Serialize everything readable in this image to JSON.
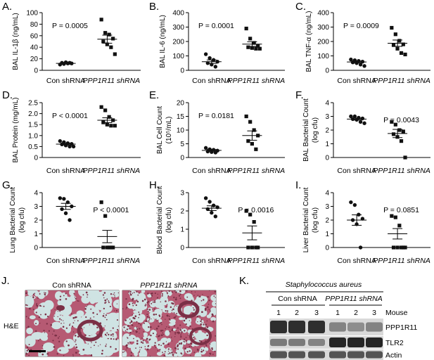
{
  "chart_data": [
    {
      "type": "scatter",
      "panel_label": "A.",
      "ylabel": "BAL IL-1β (ng/mL)",
      "ylim": [
        0,
        100
      ],
      "yticks": [
        "0",
        "20",
        "40",
        "60",
        "80",
        "100"
      ],
      "categories": [
        "Con shRNA",
        "PPP1R11 shRNA"
      ],
      "pvalue": "P = 0.0005",
      "groups": [
        {
          "points": [
            10,
            11,
            12,
            12,
            13,
            14,
            13
          ],
          "mean": 12.0,
          "sem": 1.0
        },
        {
          "points": [
            88,
            65,
            62,
            55,
            50,
            45,
            40,
            28
          ],
          "mean": 54.0,
          "sem": 7.0
        }
      ]
    },
    {
      "type": "scatter",
      "panel_label": "B.",
      "ylabel": "BAL IL-6 (ng/mL)",
      "ylim": [
        0,
        400
      ],
      "yticks": [
        "0",
        "100",
        "200",
        "300",
        "400"
      ],
      "categories": [
        "Con shRNA",
        "PPP1R11 shRNA"
      ],
      "pvalue": "P = 0.0001",
      "groups": [
        {
          "points": [
            112,
            85,
            72,
            60,
            50,
            40,
            25
          ],
          "mean": 60,
          "sem": 12
        },
        {
          "points": [
            290,
            220,
            190,
            170,
            160,
            155,
            150,
            150
          ],
          "mean": 182,
          "sem": 16
        }
      ]
    },
    {
      "type": "scatter",
      "panel_label": "C.",
      "ylabel": "BAL TNF-α (ng/mL)",
      "ylim": [
        0,
        400
      ],
      "yticks": [
        "0",
        "100",
        "200",
        "300",
        "400"
      ],
      "categories": [
        "Con shRNA",
        "PPP1R11 shRNA"
      ],
      "pvalue": "P = 0.0009",
      "groups": [
        {
          "points": [
            75,
            70,
            65,
            60,
            55,
            50,
            40,
            30
          ],
          "mean": 58,
          "sem": 6
        },
        {
          "points": [
            295,
            250,
            205,
            180,
            175,
            150,
            120,
            110
          ],
          "mean": 188,
          "sem": 22
        }
      ]
    },
    {
      "type": "scatter",
      "panel_label": "D.",
      "ylabel": "BAL Protein (mg/mL)",
      "ylim": [
        0,
        2.5
      ],
      "yticks": [
        "0",
        "0.5",
        "1.0",
        "1.5",
        "2.0",
        "2.5"
      ],
      "categories": [
        "Con shRNA",
        "PPP1R11 shRNA"
      ],
      "pvalue": "P < 0.0001",
      "groups": [
        {
          "points": [
            0.75,
            0.7,
            0.65,
            0.62,
            0.6,
            0.55,
            0.5,
            0.5
          ],
          "mean": 0.61,
          "sem": 0.04
        },
        {
          "points": [
            2.3,
            2.15,
            1.85,
            1.7,
            1.6,
            1.5,
            1.45,
            1.45
          ],
          "mean": 1.7,
          "sem": 0.11
        }
      ]
    },
    {
      "type": "scatter",
      "panel_label": "E.",
      "ylabel": "BAL Cell Count",
      "ylabel2": "(10⁵/mL)",
      "ylim": [
        0,
        20
      ],
      "yticks": [
        "0",
        "5",
        "10",
        "15",
        "20"
      ],
      "categories": [
        "Con shRNA",
        "PPP1R11 shRNA"
      ],
      "pvalue": "P = 0.0181",
      "groups": [
        {
          "points": [
            3.5,
            3.0,
            2.8,
            2.5,
            2.2,
            2.0,
            1.8
          ],
          "mean": 2.6,
          "sem": 0.3
        },
        {
          "points": [
            15,
            13,
            10,
            8,
            6,
            5,
            3
          ],
          "mean": 8.0,
          "sem": 1.7
        }
      ]
    },
    {
      "type": "scatter",
      "panel_label": "F.",
      "ylabel": "BAL Bacterial Count",
      "ylabel2": "(log cfu)",
      "ylim": [
        0,
        4
      ],
      "yticks": [
        "0",
        "1",
        "2",
        "3",
        "4"
      ],
      "categories": [
        "Con shRNA",
        "PPP1R11 shRNA"
      ],
      "pvalue": "P = 0.0043",
      "groups": [
        {
          "points": [
            3.0,
            3.0,
            2.9,
            2.85,
            2.8,
            2.75,
            2.6,
            2.5
          ],
          "mean": 2.8,
          "sem": 0.07
        },
        {
          "points": [
            2.6,
            2.4,
            2.0,
            1.9,
            1.7,
            1.5,
            1.2,
            0
          ],
          "mean": 1.75,
          "sem": 0.3
        }
      ]
    },
    {
      "type": "scatter",
      "panel_label": "G.",
      "ylabel": "Lung Bacterial Count",
      "ylabel2": "(log cfu)",
      "ylim": [
        0,
        4
      ],
      "yticks": [
        "0",
        "1",
        "2",
        "3",
        "4"
      ],
      "categories": [
        "Con shRNA",
        "PPP1R11 shRNA"
      ],
      "pvalue": "P < 0.0001",
      "groups": [
        {
          "points": [
            3.6,
            3.55,
            3.3,
            3.0,
            2.8,
            2.5,
            2.0
          ],
          "mean": 3.0,
          "sem": 0.22
        },
        {
          "points": [
            3.3,
            2.3,
            0,
            0,
            0,
            0,
            0
          ],
          "mean": 0.8,
          "sem": 0.45
        }
      ]
    },
    {
      "type": "scatter",
      "panel_label": "H.",
      "ylabel": "Blood Bacterial Count",
      "ylabel2": "(log cfu)",
      "ylim": [
        0,
        3
      ],
      "yticks": [
        "0",
        "1",
        "2",
        "3"
      ],
      "categories": [
        "Con shRNA",
        "PPP1R11 shRNA"
      ],
      "pvalue": "P = 0.0016",
      "groups": [
        {
          "points": [
            2.7,
            2.5,
            2.3,
            2.2,
            2.1,
            1.9,
            1.7
          ],
          "mean": 2.15,
          "sem": 0.13
        },
        {
          "points": [
            2.0,
            1.8,
            1.4,
            0,
            0,
            0,
            0
          ],
          "mean": 0.8,
          "sem": 0.38
        }
      ]
    },
    {
      "type": "scatter",
      "panel_label": "I.",
      "ylabel": "Liver Bacterial Count",
      "ylabel2": "(log cfu)",
      "ylim": [
        0,
        4
      ],
      "yticks": [
        "0",
        "1",
        "2",
        "3",
        "4"
      ],
      "categories": [
        "Con shRNA",
        "PPP1R11 shRNA"
      ],
      "pvalue": "P = 0.0851",
      "groups": [
        {
          "points": [
            3.3,
            3.1,
            2.4,
            2.1,
            2.0,
            1.7,
            0
          ],
          "mean": 2.0,
          "sem": 0.38
        },
        {
          "points": [
            2.3,
            2.2,
            1.6,
            0,
            0,
            0,
            0,
            0
          ],
          "mean": 1.0,
          "sem": 0.38
        }
      ]
    }
  ],
  "histology": {
    "panel_label": "J.",
    "row_label": "H&E",
    "col_labels": [
      "Con shRNA",
      "PPP1R11 shRNA"
    ]
  },
  "blot": {
    "panel_label": "K.",
    "organism": "Staphylococcus aureus",
    "groups": [
      "Con shRNA",
      "PPP1R11 shRNA"
    ],
    "lanes": [
      "1",
      "2",
      "3",
      "1",
      "2",
      "3"
    ],
    "lane_header": "Mouse",
    "bands": [
      "PPP1R11",
      "TLR2",
      "Actin"
    ],
    "intensity": {
      "PPP1R11": [
        0.9,
        0.9,
        0.9,
        0.45,
        0.4,
        0.45
      ],
      "TLR2": [
        0.5,
        0.5,
        0.45,
        0.95,
        0.95,
        0.95
      ],
      "Actin": [
        0.7,
        0.7,
        0.7,
        0.7,
        0.7,
        0.7
      ]
    }
  },
  "colors": {
    "marker": "#111111",
    "tissue": "#b65a73",
    "tissue_dark": "#7b3046",
    "airspace": "#cfe3e3",
    "band": "#1b1b1b",
    "blot_bg": "#d9d9d9"
  }
}
